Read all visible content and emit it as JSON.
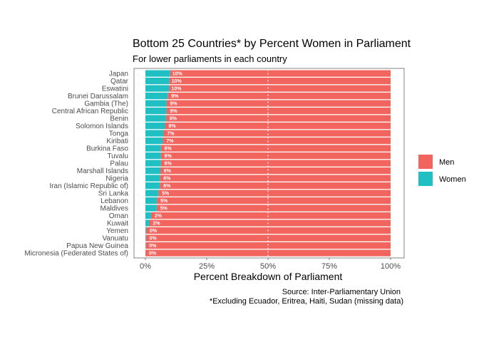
{
  "chart_data": {
    "type": "bar",
    "orientation": "horizontal",
    "stacked": true,
    "title": "Bottom 25 Countries* by Percent Women in Parliament",
    "subtitle": "For lower parliaments in each country",
    "xlabel": "Percent Breakdown of Parliament",
    "ylabel": "",
    "xlim": [
      0,
      1
    ],
    "x_ticks": [
      "0%",
      "25%",
      "50%",
      "75%",
      "100%"
    ],
    "reference_line": 0.5,
    "categories": [
      "Japan",
      "Qatar",
      "Eswatini",
      "Brunei Darussalam",
      "Gambia (The)",
      "Central African Republic",
      "Benin",
      "Solomon Islands",
      "Tonga",
      "Kiribati",
      "Burkina Faso",
      "Tuvalu",
      "Palau",
      "Marshall Islands",
      "Nigeria",
      "Iran (Islamic Republic of)",
      "Sri Lanka",
      "Lebanon",
      "Maldives",
      "Oman",
      "Kuwait",
      "Yemen",
      "Vanuatu",
      "Papua New Guinea",
      "Micronesia (Federated States of)"
    ],
    "series": [
      {
        "name": "Women",
        "color": "#1fbfc3",
        "values": [
          0.101,
          0.098,
          0.097,
          0.091,
          0.086,
          0.086,
          0.084,
          0.08,
          0.074,
          0.071,
          0.063,
          0.063,
          0.063,
          0.061,
          0.059,
          0.059,
          0.053,
          0.047,
          0.046,
          0.023,
          0.016,
          0.003,
          0.002,
          0.001,
          0.0
        ]
      },
      {
        "name": "Men",
        "color": "#f2645e",
        "values": [
          0.899,
          0.902,
          0.903,
          0.909,
          0.914,
          0.914,
          0.916,
          0.92,
          0.926,
          0.929,
          0.937,
          0.937,
          0.937,
          0.939,
          0.941,
          0.941,
          0.947,
          0.953,
          0.954,
          0.977,
          0.984,
          0.997,
          0.998,
          0.999,
          1.0
        ]
      }
    ],
    "data_labels": [
      "10%",
      "10%",
      "10%",
      "9%",
      "9%",
      "9%",
      "8%",
      "8%",
      "7%",
      "7%",
      "6%",
      "6%",
      "6%",
      "6%",
      "6%",
      "6%",
      "5%",
      "5%",
      "5%",
      "2%",
      "2%",
      "0%",
      "0%",
      "0%",
      "0%"
    ],
    "legend": {
      "position": "right",
      "entries": [
        "Men",
        "Women"
      ]
    },
    "grid": false,
    "caption_lines": [
      "Source: Inter-Parliamentary Union",
      "*Excluding Ecuador, Eritrea, Haiti, Sudan (missing data)"
    ]
  }
}
